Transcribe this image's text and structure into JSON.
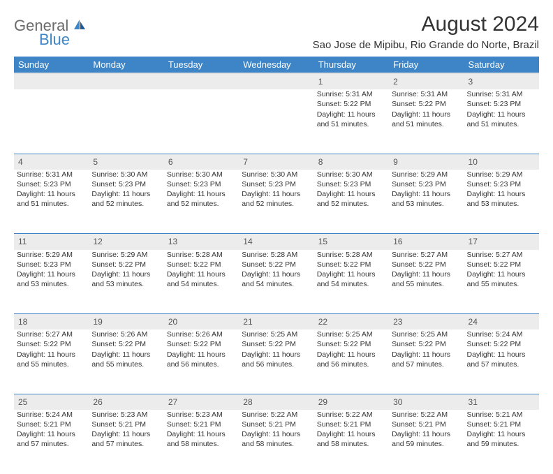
{
  "logo": {
    "word1": "General",
    "word2": "Blue"
  },
  "title": "August 2024",
  "location": "Sao Jose de Mipibu, Rio Grande do Norte, Brazil",
  "colors": {
    "header_bg": "#3d85c6",
    "header_text": "#ffffff",
    "daynum_bg": "#ececec",
    "row_divider": "#3d85c6",
    "body_text": "#333333",
    "logo_gray": "#6b6b6b",
    "logo_blue": "#3d85c6",
    "page_bg": "#ffffff"
  },
  "typography": {
    "title_fontsize": 30,
    "location_fontsize": 15,
    "weekday_fontsize": 13,
    "daynum_fontsize": 12,
    "cell_fontsize": 10.5
  },
  "weekdays": [
    "Sunday",
    "Monday",
    "Tuesday",
    "Wednesday",
    "Thursday",
    "Friday",
    "Saturday"
  ],
  "weeks": [
    [
      null,
      null,
      null,
      null,
      {
        "n": "1",
        "sr": "5:31 AM",
        "ss": "5:22 PM",
        "dl": "11 hours and 51 minutes."
      },
      {
        "n": "2",
        "sr": "5:31 AM",
        "ss": "5:22 PM",
        "dl": "11 hours and 51 minutes."
      },
      {
        "n": "3",
        "sr": "5:31 AM",
        "ss": "5:23 PM",
        "dl": "11 hours and 51 minutes."
      }
    ],
    [
      {
        "n": "4",
        "sr": "5:31 AM",
        "ss": "5:23 PM",
        "dl": "11 hours and 51 minutes."
      },
      {
        "n": "5",
        "sr": "5:30 AM",
        "ss": "5:23 PM",
        "dl": "11 hours and 52 minutes."
      },
      {
        "n": "6",
        "sr": "5:30 AM",
        "ss": "5:23 PM",
        "dl": "11 hours and 52 minutes."
      },
      {
        "n": "7",
        "sr": "5:30 AM",
        "ss": "5:23 PM",
        "dl": "11 hours and 52 minutes."
      },
      {
        "n": "8",
        "sr": "5:30 AM",
        "ss": "5:23 PM",
        "dl": "11 hours and 52 minutes."
      },
      {
        "n": "9",
        "sr": "5:29 AM",
        "ss": "5:23 PM",
        "dl": "11 hours and 53 minutes."
      },
      {
        "n": "10",
        "sr": "5:29 AM",
        "ss": "5:23 PM",
        "dl": "11 hours and 53 minutes."
      }
    ],
    [
      {
        "n": "11",
        "sr": "5:29 AM",
        "ss": "5:23 PM",
        "dl": "11 hours and 53 minutes."
      },
      {
        "n": "12",
        "sr": "5:29 AM",
        "ss": "5:22 PM",
        "dl": "11 hours and 53 minutes."
      },
      {
        "n": "13",
        "sr": "5:28 AM",
        "ss": "5:22 PM",
        "dl": "11 hours and 54 minutes."
      },
      {
        "n": "14",
        "sr": "5:28 AM",
        "ss": "5:22 PM",
        "dl": "11 hours and 54 minutes."
      },
      {
        "n": "15",
        "sr": "5:28 AM",
        "ss": "5:22 PM",
        "dl": "11 hours and 54 minutes."
      },
      {
        "n": "16",
        "sr": "5:27 AM",
        "ss": "5:22 PM",
        "dl": "11 hours and 55 minutes."
      },
      {
        "n": "17",
        "sr": "5:27 AM",
        "ss": "5:22 PM",
        "dl": "11 hours and 55 minutes."
      }
    ],
    [
      {
        "n": "18",
        "sr": "5:27 AM",
        "ss": "5:22 PM",
        "dl": "11 hours and 55 minutes."
      },
      {
        "n": "19",
        "sr": "5:26 AM",
        "ss": "5:22 PM",
        "dl": "11 hours and 55 minutes."
      },
      {
        "n": "20",
        "sr": "5:26 AM",
        "ss": "5:22 PM",
        "dl": "11 hours and 56 minutes."
      },
      {
        "n": "21",
        "sr": "5:25 AM",
        "ss": "5:22 PM",
        "dl": "11 hours and 56 minutes."
      },
      {
        "n": "22",
        "sr": "5:25 AM",
        "ss": "5:22 PM",
        "dl": "11 hours and 56 minutes."
      },
      {
        "n": "23",
        "sr": "5:25 AM",
        "ss": "5:22 PM",
        "dl": "11 hours and 57 minutes."
      },
      {
        "n": "24",
        "sr": "5:24 AM",
        "ss": "5:22 PM",
        "dl": "11 hours and 57 minutes."
      }
    ],
    [
      {
        "n": "25",
        "sr": "5:24 AM",
        "ss": "5:21 PM",
        "dl": "11 hours and 57 minutes."
      },
      {
        "n": "26",
        "sr": "5:23 AM",
        "ss": "5:21 PM",
        "dl": "11 hours and 57 minutes."
      },
      {
        "n": "27",
        "sr": "5:23 AM",
        "ss": "5:21 PM",
        "dl": "11 hours and 58 minutes."
      },
      {
        "n": "28",
        "sr": "5:22 AM",
        "ss": "5:21 PM",
        "dl": "11 hours and 58 minutes."
      },
      {
        "n": "29",
        "sr": "5:22 AM",
        "ss": "5:21 PM",
        "dl": "11 hours and 58 minutes."
      },
      {
        "n": "30",
        "sr": "5:22 AM",
        "ss": "5:21 PM",
        "dl": "11 hours and 59 minutes."
      },
      {
        "n": "31",
        "sr": "5:21 AM",
        "ss": "5:21 PM",
        "dl": "11 hours and 59 minutes."
      }
    ]
  ],
  "labels": {
    "sunrise": "Sunrise: ",
    "sunset": "Sunset: ",
    "daylight": "Daylight: "
  }
}
